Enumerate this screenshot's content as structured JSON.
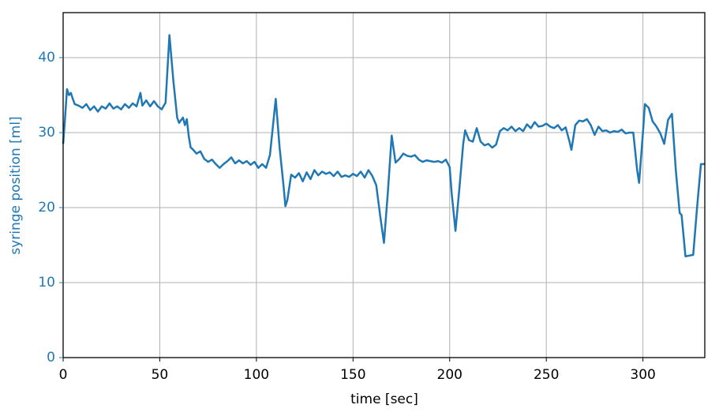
{
  "chart_data": {
    "type": "line",
    "xlabel": "time [sec]",
    "ylabel": "syringe position [ml]",
    "xlim": [
      0,
      332
    ],
    "ylim": [
      0,
      46
    ],
    "xticks": [
      0,
      50,
      100,
      150,
      200,
      250,
      300
    ],
    "yticks": [
      0,
      10,
      20,
      30,
      40
    ],
    "grid": true,
    "ylabel_color": "#1f77b4",
    "x": [
      0,
      1,
      2,
      3,
      4,
      5,
      6,
      8,
      10,
      12,
      14,
      16,
      18,
      20,
      22,
      24,
      26,
      28,
      30,
      32,
      34,
      36,
      38,
      40,
      41,
      43,
      45,
      47,
      49,
      51,
      53,
      55,
      57,
      59,
      60,
      62,
      63,
      64,
      65,
      66,
      67,
      69,
      71,
      73,
      75,
      77,
      79,
      81,
      83,
      85,
      87,
      89,
      91,
      93,
      95,
      97,
      99,
      101,
      103,
      105,
      107,
      110,
      112,
      114,
      115,
      116,
      118,
      120,
      122,
      124,
      126,
      128,
      130,
      132,
      134,
      136,
      138,
      140,
      142,
      144,
      146,
      148,
      150,
      152,
      154,
      156,
      158,
      160,
      162,
      164,
      166,
      168,
      170,
      172,
      174,
      176,
      178,
      180,
      182,
      184,
      186,
      188,
      190,
      192,
      194,
      196,
      198,
      200,
      201,
      203,
      205,
      207,
      208,
      210,
      212,
      214,
      216,
      218,
      220,
      222,
      224,
      226,
      228,
      230,
      232,
      234,
      236,
      238,
      240,
      242,
      244,
      246,
      248,
      250,
      252,
      254,
      256,
      258,
      260,
      262,
      263,
      265,
      267,
      269,
      271,
      273,
      275,
      277,
      279,
      281,
      283,
      285,
      287,
      289,
      291,
      293,
      295,
      297,
      298,
      300,
      301,
      303,
      305,
      307,
      309,
      311,
      313,
      315,
      317,
      319,
      320,
      322,
      324,
      326,
      328,
      330,
      332
    ],
    "series": [
      {
        "name": "syringe position",
        "color": "#1f77b4",
        "values": [
          28.5,
          32,
          35.8,
          35,
          35.3,
          34.5,
          33.8,
          33.6,
          33.3,
          33.8,
          33,
          33.5,
          32.8,
          33.5,
          33.2,
          33.9,
          33.2,
          33.5,
          33.1,
          33.8,
          33.3,
          33.9,
          33.5,
          35.3,
          33.6,
          34.3,
          33.5,
          34.2,
          33.5,
          33.1,
          34,
          43,
          37,
          32,
          31.3,
          32,
          31,
          31.8,
          29.5,
          28,
          27.8,
          27.2,
          27.5,
          26.5,
          26.1,
          26.4,
          25.8,
          25.3,
          25.8,
          26.2,
          26.7,
          25.9,
          26.3,
          25.9,
          26.2,
          25.7,
          26.1,
          25.3,
          25.8,
          25.3,
          27,
          34.5,
          28,
          23,
          20.2,
          21,
          24.4,
          24,
          24.6,
          23.5,
          24.7,
          23.8,
          25,
          24.3,
          24.8,
          24.5,
          24.7,
          24.2,
          24.8,
          24.1,
          24.3,
          24.1,
          24.5,
          24.2,
          24.8,
          24,
          25,
          24.2,
          23,
          19,
          15.3,
          22,
          29.6,
          26,
          26.5,
          27.2,
          26.9,
          26.8,
          27,
          26.4,
          26.1,
          26.3,
          26.2,
          26.1,
          26.2,
          26,
          26.4,
          25.4,
          22,
          16.9,
          22.5,
          28.5,
          30.3,
          29,
          28.8,
          30.6,
          28.8,
          28.3,
          28.5,
          28,
          28.4,
          30.2,
          30.6,
          30.3,
          30.8,
          30.2,
          30.6,
          30.2,
          31.1,
          30.6,
          31.4,
          30.8,
          30.9,
          31.2,
          30.8,
          30.6,
          31,
          30.3,
          30.7,
          28.8,
          27.7,
          31,
          31.6,
          31.5,
          31.8,
          31,
          29.7,
          30.8,
          30.2,
          30.3,
          30,
          30.2,
          30.1,
          30.4,
          29.9,
          30,
          30,
          25,
          23.3,
          30,
          33.8,
          33.3,
          31.5,
          30.8,
          29.9,
          28.5,
          31.7,
          32.5,
          25,
          19.3,
          19,
          13.5,
          13.6,
          13.7,
          20,
          25.8,
          25.8
        ]
      }
    ]
  }
}
